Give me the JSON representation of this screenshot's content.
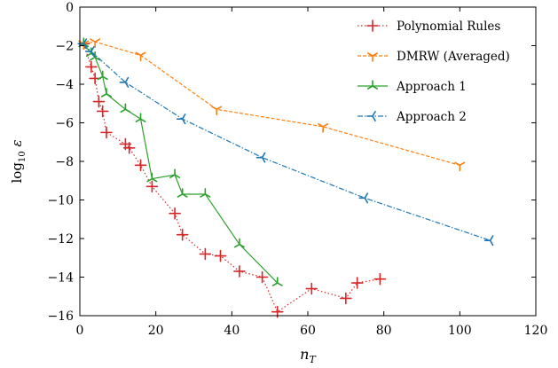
{
  "chart_data": {
    "type": "line",
    "xlabel": "n_T",
    "ylabel": "log10 ε",
    "xlim": [
      0,
      120
    ],
    "ylim": [
      -16,
      0
    ],
    "xticks": [
      0,
      20,
      40,
      60,
      80,
      100,
      120
    ],
    "yticks": [
      0,
      -2,
      -4,
      -6,
      -8,
      -10,
      -12,
      -14,
      -16
    ],
    "grid": false,
    "legend_position": "top-right",
    "series": [
      {
        "name": "Polynomial Rules",
        "color": "#d62728",
        "line_style": "dotted",
        "marker": "plus",
        "x": [
          1,
          3,
          4,
          5,
          6,
          7,
          12,
          13,
          16,
          19,
          25,
          27,
          33,
          37,
          42,
          48,
          52,
          61,
          70,
          73,
          79
        ],
        "y": [
          -1.9,
          -3.1,
          -3.7,
          -4.9,
          -5.4,
          -6.5,
          -7.1,
          -7.3,
          -8.2,
          -9.3,
          -10.7,
          -11.8,
          -12.8,
          -12.9,
          -13.7,
          -14.0,
          -15.8,
          -14.6,
          -15.1,
          -14.3,
          -14.1
        ]
      },
      {
        "name": "DMRW (Averaged)",
        "color": "#ff7f0e",
        "line_style": "dashed",
        "marker": "tri_down",
        "x": [
          1,
          4,
          16,
          36,
          64,
          100
        ],
        "y": [
          -1.9,
          -1.8,
          -2.5,
          -5.3,
          -6.2,
          -8.2
        ]
      },
      {
        "name": "Approach 1",
        "color": "#2ca02c",
        "line_style": "solid",
        "marker": "tri_up",
        "x": [
          1,
          3,
          4,
          6,
          7,
          12,
          16,
          19,
          25,
          27,
          33,
          42,
          52
        ],
        "y": [
          -1.9,
          -2.4,
          -2.6,
          -3.6,
          -4.5,
          -5.3,
          -5.8,
          -8.9,
          -8.7,
          -9.7,
          -9.7,
          -12.3,
          -14.3
        ]
      },
      {
        "name": "Approach 2",
        "color": "#1f77b4",
        "line_style": "dashdot",
        "marker": "tri_left",
        "x": [
          1,
          3,
          12,
          27,
          48,
          75,
          108
        ],
        "y": [
          -1.9,
          -2.3,
          -3.9,
          -5.8,
          -7.8,
          -9.9,
          -12.1
        ]
      }
    ]
  }
}
